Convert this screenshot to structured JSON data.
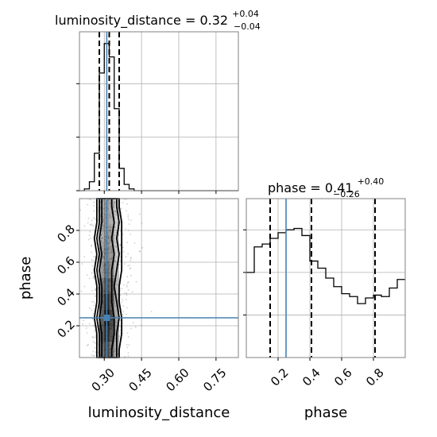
{
  "chart_data": [
    {
      "panel": "luminosity_distance-marginal",
      "type": "histogram",
      "title": {
        "text": "luminosity_distance = 0.32",
        "sup": "+0.04",
        "sub": "−0.04"
      },
      "xlim": [
        0.2,
        0.84
      ],
      "bins": [
        0.2,
        0.22,
        0.24,
        0.26,
        0.28,
        0.3,
        0.32,
        0.34,
        0.36,
        0.38,
        0.4,
        0.42,
        0.44
      ],
      "counts": [
        0.0,
        0.02,
        0.1,
        0.42,
        1.32,
        1.65,
        1.5,
        0.92,
        0.25,
        0.07,
        0.02,
        0.0
      ],
      "quantiles": [
        0.28,
        0.32,
        0.36
      ],
      "truth": 0.31,
      "grid": true
    },
    {
      "panel": "phase-marginal",
      "type": "histogram",
      "title": {
        "text": "phase = 0.41",
        "sup": "+0.40",
        "sub": "−0.26"
      },
      "xlim": [
        0.0,
        1.0
      ],
      "bins": [
        0.0,
        0.05,
        0.1,
        0.15,
        0.2,
        0.25,
        0.3,
        0.35,
        0.4,
        0.45,
        0.5,
        0.55,
        0.6,
        0.65,
        0.7,
        0.75,
        0.8,
        0.85,
        0.9,
        0.95,
        1.0
      ],
      "counts": [
        0.6,
        0.78,
        0.8,
        0.84,
        0.88,
        0.9,
        0.91,
        0.86,
        0.68,
        0.63,
        0.56,
        0.5,
        0.45,
        0.43,
        0.38,
        0.42,
        0.44,
        0.43,
        0.49,
        0.55
      ],
      "quantiles": [
        0.15,
        0.41,
        0.81
      ],
      "truth": 0.25,
      "grid": true
    },
    {
      "panel": "joint-2d",
      "type": "heatmap",
      "xlim": [
        0.2,
        0.84
      ],
      "ylim": [
        0.0,
        1.0
      ],
      "xlabel": "luminosity_distance",
      "ylabel": "phase",
      "xticks": [
        "0.30",
        "0.45",
        "0.60",
        "0.75"
      ],
      "xtick_values": [
        0.3,
        0.45,
        0.6,
        0.75
      ],
      "yticks": [
        "0.2",
        "0.4",
        "0.6",
        "0.8"
      ],
      "ytick_values": [
        0.2,
        0.4,
        0.6,
        0.8
      ],
      "x_bin_centers": [
        0.29,
        0.31,
        0.33,
        0.35
      ],
      "y_bin_centers": [
        0.05,
        0.15,
        0.25,
        0.35,
        0.45,
        0.55,
        0.65,
        0.75,
        0.85,
        0.95
      ],
      "density": [
        [
          0.55,
          0.75,
          0.55,
          0.25
        ],
        [
          0.65,
          0.9,
          0.7,
          0.3
        ],
        [
          0.65,
          1.0,
          0.75,
          0.3
        ],
        [
          0.6,
          0.9,
          0.65,
          0.25
        ],
        [
          0.5,
          0.7,
          0.55,
          0.2
        ],
        [
          0.35,
          0.55,
          0.4,
          0.15
        ],
        [
          0.3,
          0.45,
          0.35,
          0.12
        ],
        [
          0.25,
          0.4,
          0.3,
          0.1
        ],
        [
          0.25,
          0.35,
          0.25,
          0.1
        ],
        [
          0.25,
          0.35,
          0.25,
          0.1
        ]
      ],
      "contour_x_ranges": [
        {
          "lo": [
            0.29,
            0.29,
            0.28,
            0.29,
            0.29,
            0.28,
            0.29,
            0.28,
            0.29,
            0.29
          ],
          "hi": [
            0.33,
            0.34,
            0.34,
            0.33,
            0.33,
            0.33,
            0.34,
            0.33,
            0.34,
            0.33
          ]
        },
        {
          "lo": [
            0.28,
            0.28,
            0.27,
            0.28,
            0.28,
            0.27,
            0.28,
            0.27,
            0.28,
            0.28
          ],
          "hi": [
            0.35,
            0.35,
            0.36,
            0.35,
            0.34,
            0.35,
            0.36,
            0.35,
            0.36,
            0.35
          ]
        },
        {
          "lo": [
            0.27,
            0.27,
            0.26,
            0.27,
            0.27,
            0.26,
            0.27,
            0.26,
            0.27,
            0.27
          ],
          "hi": [
            0.36,
            0.37,
            0.37,
            0.36,
            0.36,
            0.37,
            0.37,
            0.37,
            0.37,
            0.36
          ]
        }
      ],
      "truth": [
        0.31,
        0.25
      ],
      "grid": true
    }
  ],
  "colors": {
    "truth": "#4682b4",
    "hist": "#000000",
    "grid": "#b0b0b0",
    "frame": "#808080",
    "density": "#000000",
    "scatter": "#777777"
  }
}
